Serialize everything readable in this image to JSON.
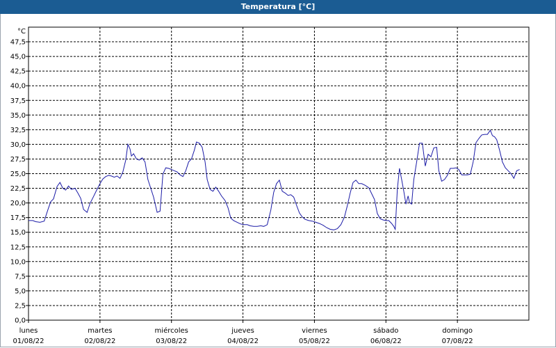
{
  "window": {
    "title": "Temperatura [°C]"
  },
  "colors": {
    "titlebar": "#1b5c93",
    "line": "#1a1aa6",
    "grid": "#000000",
    "plot_bg": "#ffffff"
  },
  "chart_data": {
    "type": "line",
    "title": "Temperatura [°C]",
    "ylabel": "°C",
    "ylim": [
      0,
      50
    ],
    "yticks": [
      "0,0",
      "2,5",
      "5,0",
      "7,5",
      "10,0",
      "12,5",
      "15,0",
      "17,5",
      "20,0",
      "22,5",
      "25,0",
      "27,5",
      "30,0",
      "32,5",
      "35,0",
      "37,5",
      "40,0",
      "42,5",
      "45,0",
      "47,5"
    ],
    "xlim": [
      0,
      7
    ],
    "days": [
      {
        "day": "lunes",
        "date": "01/08/22",
        "x": 0
      },
      {
        "day": "martes",
        "date": "02/08/22",
        "x": 1
      },
      {
        "day": "miércoles",
        "date": "03/08/22",
        "x": 2
      },
      {
        "day": "jueves",
        "date": "04/08/22",
        "x": 3
      },
      {
        "day": "viernes",
        "date": "05/08/22",
        "x": 4
      },
      {
        "day": "sábado",
        "date": "06/08/22",
        "x": 5
      },
      {
        "day": "domingo",
        "date": "07/08/22",
        "x": 6
      }
    ],
    "grid": true,
    "series": [
      {
        "color": "#1a1aa6",
        "points": [
          [
            0.0,
            17.0
          ],
          [
            0.06,
            17.0
          ],
          [
            0.1,
            16.8
          ],
          [
            0.16,
            16.7
          ],
          [
            0.22,
            16.9
          ],
          [
            0.27,
            18.8
          ],
          [
            0.31,
            20.2
          ],
          [
            0.35,
            20.7
          ],
          [
            0.4,
            22.8
          ],
          [
            0.44,
            23.5
          ],
          [
            0.48,
            22.5
          ],
          [
            0.52,
            22.2
          ],
          [
            0.56,
            22.9
          ],
          [
            0.6,
            22.3
          ],
          [
            0.65,
            22.5
          ],
          [
            0.69,
            21.7
          ],
          [
            0.73,
            20.8
          ],
          [
            0.77,
            18.9
          ],
          [
            0.82,
            18.4
          ],
          [
            0.86,
            19.9
          ],
          [
            0.91,
            21.1
          ],
          [
            0.95,
            22.1
          ],
          [
            1.0,
            23.3
          ],
          [
            1.04,
            24.1
          ],
          [
            1.08,
            24.5
          ],
          [
            1.12,
            24.7
          ],
          [
            1.16,
            24.6
          ],
          [
            1.2,
            24.4
          ],
          [
            1.24,
            24.6
          ],
          [
            1.28,
            24.2
          ],
          [
            1.32,
            25.3
          ],
          [
            1.36,
            27.3
          ],
          [
            1.39,
            30.0
          ],
          [
            1.42,
            29.2
          ],
          [
            1.44,
            28.0
          ],
          [
            1.47,
            28.4
          ],
          [
            1.51,
            27.5
          ],
          [
            1.55,
            27.3
          ],
          [
            1.59,
            27.7
          ],
          [
            1.63,
            27.0
          ],
          [
            1.67,
            24.0
          ],
          [
            1.71,
            22.5
          ],
          [
            1.75,
            21.0
          ],
          [
            1.8,
            18.4
          ],
          [
            1.84,
            18.6
          ],
          [
            1.88,
            24.9
          ],
          [
            1.92,
            26.0
          ],
          [
            1.96,
            25.9
          ],
          [
            2.0,
            25.7
          ],
          [
            2.04,
            25.5
          ],
          [
            2.08,
            25.3
          ],
          [
            2.12,
            24.8
          ],
          [
            2.16,
            24.5
          ],
          [
            2.2,
            25.5
          ],
          [
            2.24,
            27.0
          ],
          [
            2.28,
            27.5
          ],
          [
            2.32,
            29.0
          ],
          [
            2.35,
            30.4
          ],
          [
            2.39,
            30.2
          ],
          [
            2.43,
            29.5
          ],
          [
            2.47,
            27.0
          ],
          [
            2.5,
            24.0
          ],
          [
            2.54,
            22.3
          ],
          [
            2.58,
            22.0
          ],
          [
            2.62,
            22.7
          ],
          [
            2.66,
            22.0
          ],
          [
            2.7,
            21.2
          ],
          [
            2.75,
            20.4
          ],
          [
            2.79,
            19.2
          ],
          [
            2.83,
            17.4
          ],
          [
            2.87,
            17.0
          ],
          [
            2.92,
            16.7
          ],
          [
            2.97,
            16.4
          ],
          [
            3.02,
            16.3
          ],
          [
            3.06,
            16.3
          ],
          [
            3.1,
            16.1
          ],
          [
            3.15,
            16.0
          ],
          [
            3.2,
            16.0
          ],
          [
            3.25,
            16.1
          ],
          [
            3.29,
            16.0
          ],
          [
            3.34,
            16.3
          ],
          [
            3.39,
            18.8
          ],
          [
            3.43,
            21.8
          ],
          [
            3.47,
            23.3
          ],
          [
            3.51,
            23.9
          ],
          [
            3.55,
            22.0
          ],
          [
            3.59,
            21.7
          ],
          [
            3.63,
            21.3
          ],
          [
            3.67,
            21.4
          ],
          [
            3.71,
            21.0
          ],
          [
            3.75,
            19.6
          ],
          [
            3.79,
            18.3
          ],
          [
            3.83,
            17.6
          ],
          [
            3.87,
            17.2
          ],
          [
            3.92,
            17.0
          ],
          [
            3.97,
            16.9
          ],
          [
            4.02,
            16.7
          ],
          [
            4.07,
            16.5
          ],
          [
            4.12,
            16.2
          ],
          [
            4.17,
            15.8
          ],
          [
            4.22,
            15.5
          ],
          [
            4.27,
            15.4
          ],
          [
            4.32,
            15.6
          ],
          [
            4.37,
            16.3
          ],
          [
            4.42,
            17.6
          ],
          [
            4.46,
            19.5
          ],
          [
            4.5,
            21.7
          ],
          [
            4.54,
            23.5
          ],
          [
            4.58,
            23.9
          ],
          [
            4.62,
            23.3
          ],
          [
            4.66,
            23.3
          ],
          [
            4.71,
            23.0
          ],
          [
            4.76,
            22.6
          ],
          [
            4.8,
            21.6
          ],
          [
            4.84,
            20.6
          ],
          [
            4.88,
            18.2
          ],
          [
            4.92,
            17.3
          ],
          [
            4.96,
            17.1
          ],
          [
            5.0,
            17.0
          ],
          [
            5.04,
            17.0
          ],
          [
            5.08,
            16.5
          ],
          [
            5.11,
            16.0
          ],
          [
            5.13,
            15.5
          ],
          [
            5.16,
            22.3
          ],
          [
            5.19,
            25.9
          ],
          [
            5.22,
            24.0
          ],
          [
            5.25,
            22.0
          ],
          [
            5.28,
            19.8
          ],
          [
            5.31,
            21.2
          ],
          [
            5.33,
            20.1
          ],
          [
            5.36,
            19.8
          ],
          [
            5.39,
            24.0
          ],
          [
            5.43,
            27.0
          ],
          [
            5.47,
            30.2
          ],
          [
            5.51,
            30.2
          ],
          [
            5.55,
            26.3
          ],
          [
            5.59,
            28.3
          ],
          [
            5.63,
            27.9
          ],
          [
            5.67,
            29.4
          ],
          [
            5.71,
            29.5
          ],
          [
            5.74,
            25.5
          ],
          [
            5.78,
            23.7
          ],
          [
            5.82,
            24.0
          ],
          [
            5.86,
            24.7
          ],
          [
            5.9,
            25.9
          ],
          [
            5.94,
            25.9
          ],
          [
            5.98,
            26.0
          ],
          [
            6.02,
            25.7
          ],
          [
            6.06,
            24.8
          ],
          [
            6.1,
            24.8
          ],
          [
            6.14,
            24.8
          ],
          [
            6.18,
            24.9
          ],
          [
            6.22,
            27.0
          ],
          [
            6.26,
            30.3
          ],
          [
            6.3,
            31.0
          ],
          [
            6.34,
            31.6
          ],
          [
            6.38,
            31.7
          ],
          [
            6.42,
            31.7
          ],
          [
            6.46,
            32.4
          ],
          [
            6.49,
            31.5
          ],
          [
            6.52,
            31.3
          ],
          [
            6.55,
            30.8
          ],
          [
            6.59,
            29.0
          ],
          [
            6.63,
            27.0
          ],
          [
            6.67,
            26.0
          ],
          [
            6.71,
            25.5
          ],
          [
            6.75,
            25.0
          ],
          [
            6.79,
            24.2
          ],
          [
            6.83,
            25.5
          ],
          [
            6.87,
            25.7
          ]
        ]
      }
    ]
  }
}
